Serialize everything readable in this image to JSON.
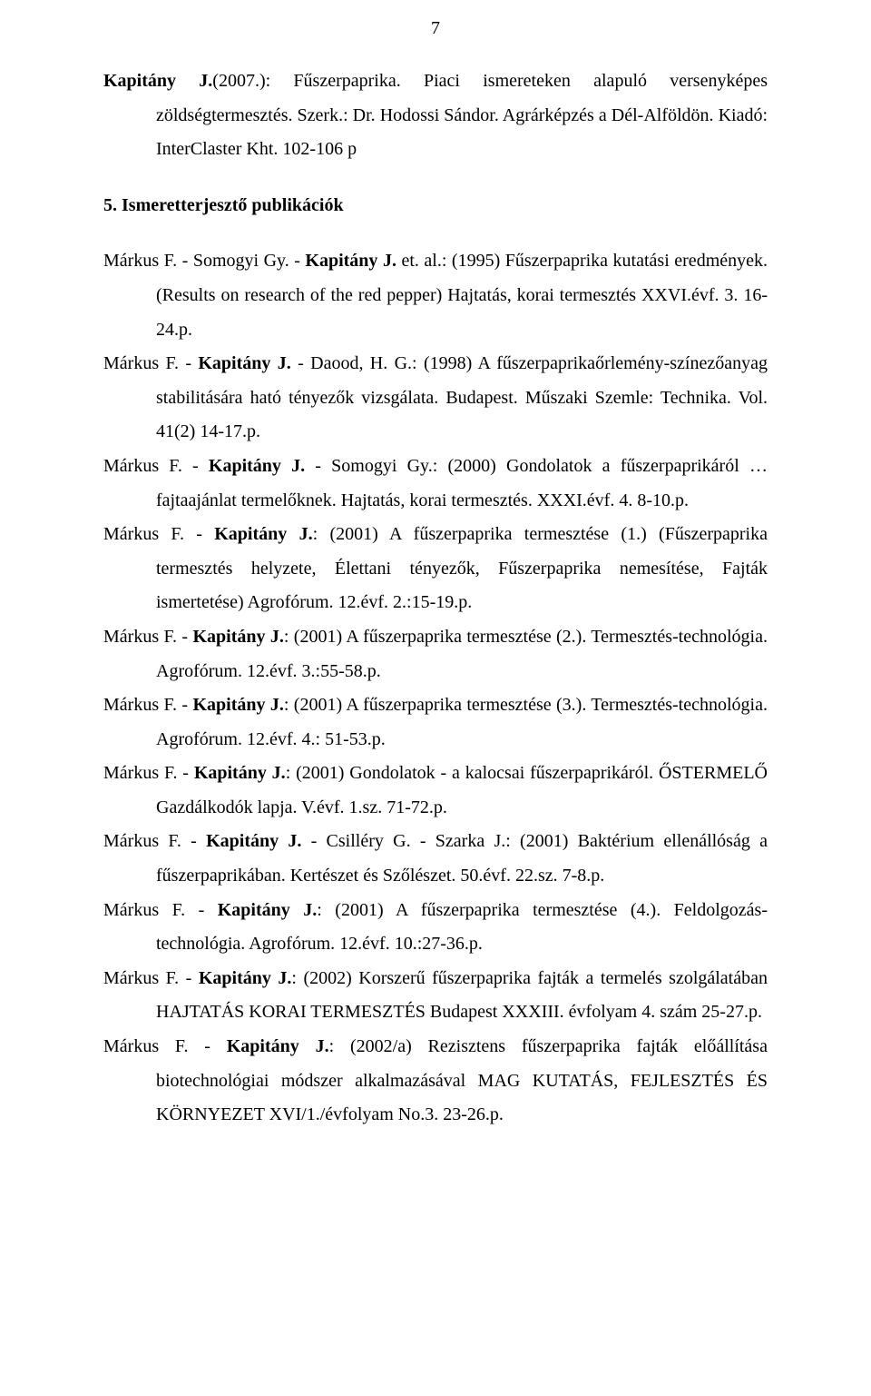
{
  "page_number": "7",
  "entry_top": {
    "author_bold": "Kapitány J.",
    "rest": "(2007.): Fűszerpaprika. Piaci ismereteken alapuló versenyképes zöldségtermesztés. Szerk.: Dr. Hodossi Sándor. Agrárképzés a Dél-Alföldön. Kiadó: InterClaster Kht. 102-106 p"
  },
  "section_heading": "5. Ismeretterjesztő publikációk",
  "refs": [
    {
      "pre": "Márkus F. - Somogyi Gy. - ",
      "bold": "Kapitány J.",
      "post": " et. al.: (1995) Fűszerpaprika kutatási eredmények. (Results on research of the red pepper) Hajtatás, korai termesztés XXVI.évf. 3. 16-24.p."
    },
    {
      "pre": "Márkus F. - ",
      "bold": "Kapitány J.",
      "post": " - Daood, H. G.: (1998) A fűszerpaprikaőrlemény-színezőanyag stabilitására ható tényezők vizsgálata. Budapest. Műszaki Szemle: Technika. Vol. 41(2) 14-17.p."
    },
    {
      "pre": "Márkus F. - ",
      "bold": "Kapitány J.",
      "post": " - Somogyi Gy.: (2000) Gondolatok a fűszerpaprikáról … fajtaajánlat termelőknek. Hajtatás, korai termesztés. XXXI.évf. 4. 8-10.p."
    },
    {
      "pre": "Márkus F. - ",
      "bold": "Kapitány J.",
      "post": ": (2001) A fűszerpaprika termesztése (1.) (Fűszerpaprika termesztés helyzete, Élettani tényezők, Fűszerpaprika nemesítése, Fajták ismertetése) Agrofórum. 12.évf. 2.:15-19.p."
    },
    {
      "pre": "Márkus F. - ",
      "bold": "Kapitány J.",
      "post": ": (2001) A fűszerpaprika termesztése (2.). Termesztés-technológia. Agrofórum. 12.évf. 3.:55-58.p."
    },
    {
      "pre": "Márkus F. - ",
      "bold": "Kapitány J.",
      "post": ": (2001) A fűszerpaprika termesztése (3.). Termesztés-technológia. Agrofórum. 12.évf. 4.: 51-53.p."
    },
    {
      "pre": "Márkus F. - ",
      "bold": "Kapitány J.",
      "post": ": (2001) Gondolatok - a kalocsai fűszerpaprikáról. ŐSTERMELŐ Gazdálkodók lapja. V.évf. 1.sz. 71-72.p."
    },
    {
      "pre": "Márkus F. - ",
      "bold": "Kapitány J.",
      "post": " - Csilléry G. - Szarka J.: (2001) Baktérium ellenállóság a fűszerpaprikában. Kertészet és Szőlészet. 50.évf. 22.sz. 7-8.p."
    },
    {
      "pre": "Márkus F. - ",
      "bold": "Kapitány J.",
      "post": ": (2001) A fűszerpaprika termesztése (4.). Feldolgozás-technológia. Agrofórum. 12.évf. 10.:27-36.p."
    },
    {
      "pre": "Márkus F.  - ",
      "bold": "Kapitány J.",
      "post": ": (2002)  Korszerű fűszerpaprika fajták a termelés szolgálatában HAJTATÁS KORAI TERMESZTÉS Budapest XXXIII. évfolyam  4. szám 25-27.p."
    },
    {
      "pre": "Márkus F. - ",
      "bold": "Kapitány J.",
      "post": ": (2002/a) Rezisztens fűszerpaprika fajták előállítása biotechnológiai módszer alkalmazásával MAG KUTATÁS, FEJLESZTÉS ÉS KÖRNYEZET XVI/1./évfolyam  No.3. 23-26.p."
    }
  ]
}
